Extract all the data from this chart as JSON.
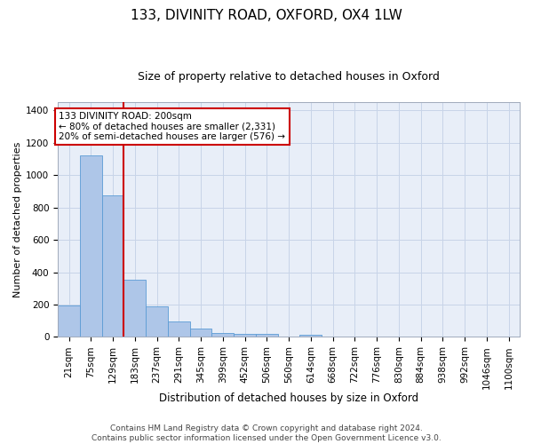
{
  "title": "133, DIVINITY ROAD, OXFORD, OX4 1LW",
  "subtitle": "Size of property relative to detached houses in Oxford",
  "xlabel": "Distribution of detached houses by size in Oxford",
  "ylabel": "Number of detached properties",
  "bar_color": "#aec6e8",
  "bar_edge_color": "#5b9bd5",
  "vline_color": "#cc0000",
  "vline_x_index": 3,
  "annotation_text": "133 DIVINITY ROAD: 200sqm\n← 80% of detached houses are smaller (2,331)\n20% of semi-detached houses are larger (576) →",
  "annotation_box_facecolor": "#ffffff",
  "annotation_box_edgecolor": "#cc0000",
  "categories": [
    "21sqm",
    "75sqm",
    "129sqm",
    "183sqm",
    "237sqm",
    "291sqm",
    "345sqm",
    "399sqm",
    "452sqm",
    "506sqm",
    "560sqm",
    "614sqm",
    "668sqm",
    "722sqm",
    "776sqm",
    "830sqm",
    "884sqm",
    "938sqm",
    "992sqm",
    "1046sqm",
    "1100sqm"
  ],
  "values": [
    193,
    1120,
    873,
    355,
    188,
    97,
    50,
    22,
    17,
    17,
    0,
    15,
    0,
    0,
    0,
    0,
    0,
    0,
    0,
    0,
    0
  ],
  "ylim": [
    0,
    1450
  ],
  "yticks": [
    0,
    200,
    400,
    600,
    800,
    1000,
    1200,
    1400
  ],
  "grid_color": "#c8d4e8",
  "background_color": "#e8eef8",
  "footer": "Contains HM Land Registry data © Crown copyright and database right 2024.\nContains public sector information licensed under the Open Government Licence v3.0.",
  "title_fontsize": 11,
  "subtitle_fontsize": 9,
  "xlabel_fontsize": 8.5,
  "ylabel_fontsize": 8,
  "tick_fontsize": 7.5,
  "footer_fontsize": 6.5,
  "annot_fontsize": 7.5
}
